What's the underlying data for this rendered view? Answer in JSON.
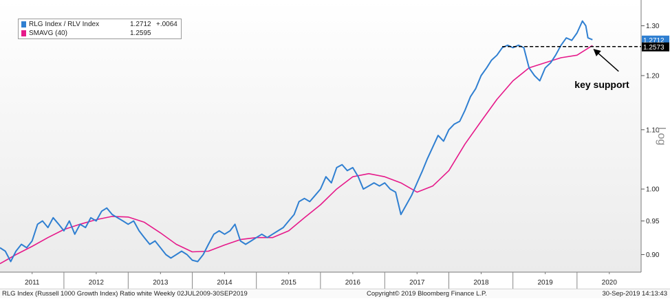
{
  "chart_data": {
    "type": "line",
    "scale": "log",
    "ylabel": "Log",
    "ylim": [
      0.875,
      1.355
    ],
    "y_ticks": [
      "0.90",
      "0.95",
      "1.00",
      "1.10",
      "1.20",
      "1.30"
    ],
    "x_ticks": [
      "2011",
      "2012",
      "2013",
      "2014",
      "2015",
      "2016",
      "2017",
      "2018",
      "2019",
      "2020"
    ],
    "xlim": [
      "2010-07-02",
      "2020-06-30"
    ],
    "grid": false,
    "legend_position": "top-left",
    "series": [
      {
        "name": "RLG Index / RLV Index",
        "color": "#2f7fd1",
        "last_value": "1.2712",
        "change": "+.0064",
        "points": [
          [
            "2010-07-02",
            0.91
          ],
          [
            "2010-08-01",
            0.905
          ],
          [
            "2010-09-01",
            0.89
          ],
          [
            "2010-10-01",
            0.905
          ],
          [
            "2010-11-01",
            0.915
          ],
          [
            "2010-12-01",
            0.91
          ],
          [
            "2011-01-01",
            0.92
          ],
          [
            "2011-02-01",
            0.945
          ],
          [
            "2011-03-01",
            0.95
          ],
          [
            "2011-04-01",
            0.94
          ],
          [
            "2011-05-01",
            0.955
          ],
          [
            "2011-06-01",
            0.945
          ],
          [
            "2011-07-01",
            0.935
          ],
          [
            "2011-08-01",
            0.95
          ],
          [
            "2011-09-01",
            0.93
          ],
          [
            "2011-10-01",
            0.945
          ],
          [
            "2011-11-01",
            0.94
          ],
          [
            "2011-12-01",
            0.955
          ],
          [
            "2012-01-01",
            0.95
          ],
          [
            "2012-02-01",
            0.965
          ],
          [
            "2012-03-01",
            0.97
          ],
          [
            "2012-04-01",
            0.96
          ],
          [
            "2012-05-01",
            0.955
          ],
          [
            "2012-06-01",
            0.95
          ],
          [
            "2012-07-01",
            0.945
          ],
          [
            "2012-08-01",
            0.95
          ],
          [
            "2012-09-01",
            0.935
          ],
          [
            "2012-10-01",
            0.925
          ],
          [
            "2012-11-01",
            0.915
          ],
          [
            "2012-12-01",
            0.92
          ],
          [
            "2013-01-01",
            0.91
          ],
          [
            "2013-02-01",
            0.9
          ],
          [
            "2013-03-01",
            0.895
          ],
          [
            "2013-04-01",
            0.9
          ],
          [
            "2013-05-01",
            0.905
          ],
          [
            "2013-06-01",
            0.9
          ],
          [
            "2013-07-01",
            0.892
          ],
          [
            "2013-08-01",
            0.89
          ],
          [
            "2013-09-01",
            0.9
          ],
          [
            "2013-10-01",
            0.915
          ],
          [
            "2013-11-01",
            0.93
          ],
          [
            "2013-12-01",
            0.935
          ],
          [
            "2014-01-01",
            0.93
          ],
          [
            "2014-02-01",
            0.935
          ],
          [
            "2014-03-01",
            0.945
          ],
          [
            "2014-04-01",
            0.92
          ],
          [
            "2014-05-01",
            0.915
          ],
          [
            "2014-06-01",
            0.92
          ],
          [
            "2014-07-01",
            0.925
          ],
          [
            "2014-08-01",
            0.93
          ],
          [
            "2014-09-01",
            0.925
          ],
          [
            "2014-10-01",
            0.93
          ],
          [
            "2014-11-01",
            0.935
          ],
          [
            "2014-12-01",
            0.94
          ],
          [
            "2015-01-01",
            0.95
          ],
          [
            "2015-02-01",
            0.96
          ],
          [
            "2015-03-01",
            0.98
          ],
          [
            "2015-04-01",
            0.985
          ],
          [
            "2015-05-01",
            0.98
          ],
          [
            "2015-06-01",
            0.99
          ],
          [
            "2015-07-01",
            1.0
          ],
          [
            "2015-08-01",
            1.02
          ],
          [
            "2015-09-01",
            1.01
          ],
          [
            "2015-10-01",
            1.035
          ],
          [
            "2015-11-01",
            1.04
          ],
          [
            "2015-12-01",
            1.03
          ],
          [
            "2016-01-01",
            1.035
          ],
          [
            "2016-02-01",
            1.02
          ],
          [
            "2016-03-01",
            1.0
          ],
          [
            "2016-04-01",
            1.005
          ],
          [
            "2016-05-01",
            1.01
          ],
          [
            "2016-06-01",
            1.005
          ],
          [
            "2016-07-01",
            1.01
          ],
          [
            "2016-08-01",
            1.0
          ],
          [
            "2016-09-01",
            0.995
          ],
          [
            "2016-10-01",
            0.96
          ],
          [
            "2016-11-01",
            0.975
          ],
          [
            "2016-12-01",
            0.99
          ],
          [
            "2017-01-01",
            1.01
          ],
          [
            "2017-02-01",
            1.03
          ],
          [
            "2017-03-01",
            1.05
          ],
          [
            "2017-04-01",
            1.07
          ],
          [
            "2017-05-01",
            1.09
          ],
          [
            "2017-06-01",
            1.08
          ],
          [
            "2017-07-01",
            1.1
          ],
          [
            "2017-08-01",
            1.11
          ],
          [
            "2017-09-01",
            1.115
          ],
          [
            "2017-10-01",
            1.135
          ],
          [
            "2017-11-01",
            1.16
          ],
          [
            "2017-12-01",
            1.175
          ],
          [
            "2018-01-01",
            1.2
          ],
          [
            "2018-02-01",
            1.215
          ],
          [
            "2018-03-01",
            1.23
          ],
          [
            "2018-04-01",
            1.24
          ],
          [
            "2018-05-01",
            1.255
          ],
          [
            "2018-06-01",
            1.26
          ],
          [
            "2018-07-01",
            1.255
          ],
          [
            "2018-08-01",
            1.26
          ],
          [
            "2018-09-01",
            1.255
          ],
          [
            "2018-10-01",
            1.215
          ],
          [
            "2018-11-01",
            1.2
          ],
          [
            "2018-12-01",
            1.19
          ],
          [
            "2019-01-01",
            1.215
          ],
          [
            "2019-02-01",
            1.225
          ],
          [
            "2019-03-01",
            1.24
          ],
          [
            "2019-04-01",
            1.26
          ],
          [
            "2019-05-01",
            1.275
          ],
          [
            "2019-06-01",
            1.27
          ],
          [
            "2019-07-01",
            1.285
          ],
          [
            "2019-08-01",
            1.31
          ],
          [
            "2019-08-20",
            1.3
          ],
          [
            "2019-09-01",
            1.275
          ],
          [
            "2019-09-27",
            1.2712
          ]
        ]
      },
      {
        "name": "SMAVG (40)",
        "color": "#e6198a",
        "last_value": "1.2595",
        "points": [
          [
            "2010-07-02",
            0.887
          ],
          [
            "2010-10-01",
            0.9
          ],
          [
            "2011-01-01",
            0.912
          ],
          [
            "2011-04-01",
            0.925
          ],
          [
            "2011-07-01",
            0.937
          ],
          [
            "2011-10-01",
            0.945
          ],
          [
            "2012-01-01",
            0.952
          ],
          [
            "2012-04-01",
            0.957
          ],
          [
            "2012-07-01",
            0.956
          ],
          [
            "2012-10-01",
            0.948
          ],
          [
            "2013-01-01",
            0.932
          ],
          [
            "2013-04-01",
            0.915
          ],
          [
            "2013-07-01",
            0.904
          ],
          [
            "2013-10-01",
            0.905
          ],
          [
            "2014-01-01",
            0.914
          ],
          [
            "2014-04-01",
            0.922
          ],
          [
            "2014-07-01",
            0.925
          ],
          [
            "2014-10-01",
            0.925
          ],
          [
            "2015-01-01",
            0.935
          ],
          [
            "2015-04-01",
            0.955
          ],
          [
            "2015-07-01",
            0.975
          ],
          [
            "2015-10-01",
            1.0
          ],
          [
            "2016-01-01",
            1.02
          ],
          [
            "2016-04-01",
            1.025
          ],
          [
            "2016-07-01",
            1.02
          ],
          [
            "2016-10-01",
            1.01
          ],
          [
            "2017-01-01",
            0.995
          ],
          [
            "2017-04-01",
            1.005
          ],
          [
            "2017-07-01",
            1.03
          ],
          [
            "2017-10-01",
            1.075
          ],
          [
            "2018-01-01",
            1.115
          ],
          [
            "2018-04-01",
            1.155
          ],
          [
            "2018-07-01",
            1.19
          ],
          [
            "2018-10-01",
            1.215
          ],
          [
            "2019-01-01",
            1.225
          ],
          [
            "2019-04-01",
            1.235
          ],
          [
            "2019-07-01",
            1.24
          ],
          [
            "2019-09-27",
            1.2595
          ]
        ]
      }
    ],
    "annotations": {
      "support_level": 1.2573,
      "support_label": "1.2573",
      "support_start": "2018-05-01",
      "arrow_text": "key support",
      "price_tag": "1.2712",
      "price_tag_color": "#2f7fd1"
    }
  },
  "footer": {
    "left": "RLG Index (Russell 1000 Growth Index) Ratio white  Weekly 02JUL2009-30SEP2019",
    "center": "Copyright© 2019 Bloomberg Finance L.P.",
    "right": "30-Sep-2019 14:13:43"
  }
}
